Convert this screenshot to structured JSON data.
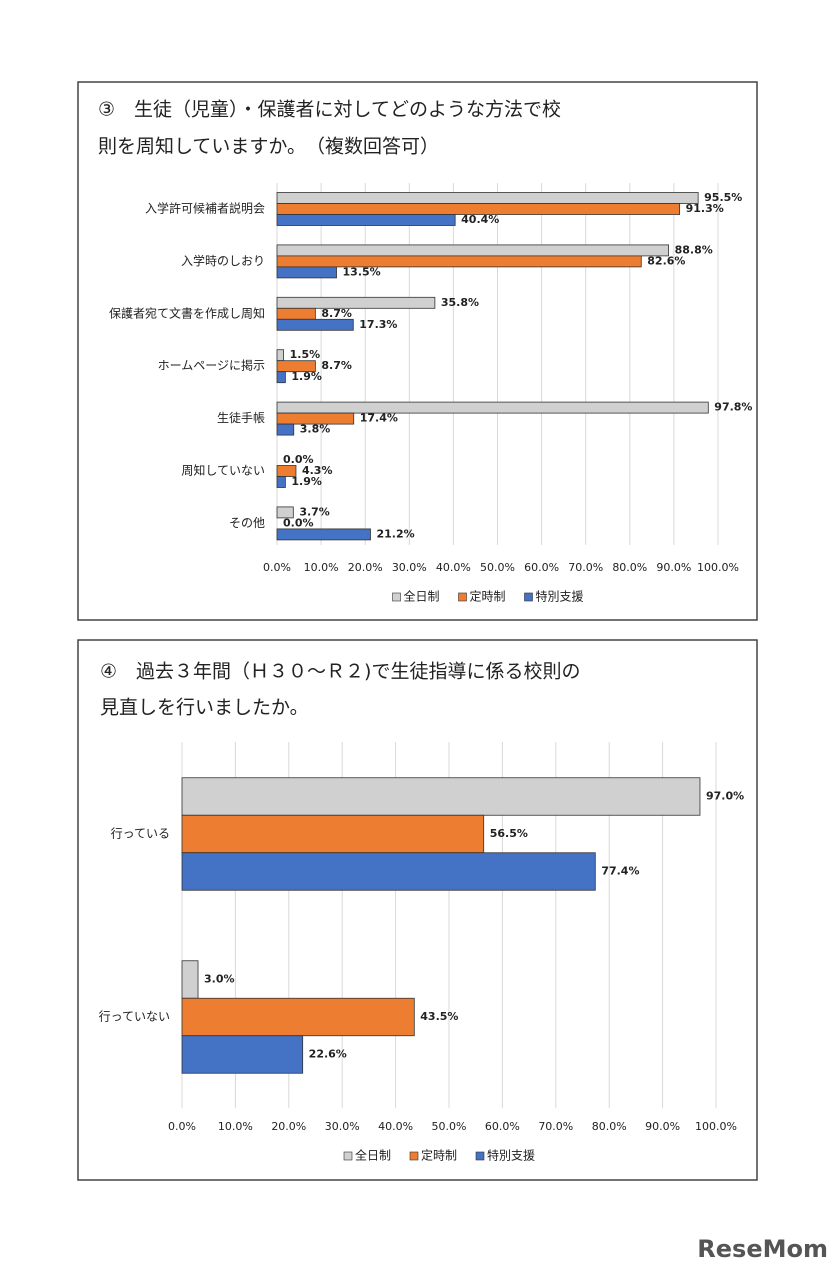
{
  "chart_data": [
    {
      "type": "bar",
      "orientation": "horizontal",
      "title_lines": [
        "③　生徒（児童）・保護者に対してどのような方法で校",
        "則を周知していますか。　（複数回答可）"
      ],
      "categories": [
        "入学許可候補者説明会",
        "入学時のしおり",
        "保護者宛て文書を作成し周知",
        "ホームページに掲示",
        "生徒手帳",
        "周知していない",
        "その他"
      ],
      "series": [
        {
          "name": "全日制",
          "color": "#d0d0d0",
          "values": [
            95.5,
            88.8,
            35.8,
            1.5,
            97.8,
            0.0,
            3.7
          ],
          "value_labels": [
            "95.5%",
            "88.8%",
            "35.8%",
            "1.5%",
            "97.8%",
            "0.0%",
            "3.7%"
          ]
        },
        {
          "name": "定時制",
          "color": "#ed7d31",
          "values": [
            91.3,
            82.6,
            8.7,
            8.7,
            17.4,
            4.3,
            0.0
          ],
          "value_labels": [
            "91.3%",
            "82.6%",
            "8.7%",
            "8.7%",
            "17.4%",
            "4.3%",
            "0.0%"
          ]
        },
        {
          "name": "特別支援",
          "color": "#4472c4",
          "values": [
            40.4,
            13.5,
            17.3,
            1.9,
            3.8,
            1.9,
            21.2
          ],
          "value_labels": [
            "40.4%",
            "13.5%",
            "17.3%",
            "1.9%",
            "3.8%",
            "1.9%",
            "21.2%"
          ]
        }
      ],
      "xlim": [
        0,
        100
      ],
      "xticks": [
        {
          "value": 0,
          "label": "0.0%"
        },
        {
          "value": 10,
          "label": "10.0%"
        },
        {
          "value": 20,
          "label": "20.0%"
        },
        {
          "value": 30,
          "label": "30.0%"
        },
        {
          "value": 40,
          "label": "40.0%"
        },
        {
          "value": 50,
          "label": "50.0%"
        },
        {
          "value": 60,
          "label": "60.0%"
        },
        {
          "value": 70,
          "label": "70.0%"
        },
        {
          "value": 80,
          "label": "80.0%"
        },
        {
          "value": 90,
          "label": "90.0%"
        },
        {
          "value": 100,
          "label": "100.0%"
        }
      ],
      "grid": true,
      "legend": "bottom"
    },
    {
      "type": "bar",
      "orientation": "horizontal",
      "title_lines": [
        "④　過去３年間（Ｈ３０～Ｒ２)で生徒指導に係る校則の",
        "見直しを行いましたか。"
      ],
      "categories": [
        "行っている",
        "行っていない"
      ],
      "series": [
        {
          "name": "全日制",
          "color": "#d0d0d0",
          "values": [
            97.0,
            3.0
          ],
          "value_labels": [
            "97.0%",
            "3.0%"
          ]
        },
        {
          "name": "定時制",
          "color": "#ed7d31",
          "values": [
            56.5,
            43.5
          ],
          "value_labels": [
            "56.5%",
            "43.5%"
          ]
        },
        {
          "name": "特別支援",
          "color": "#4472c4",
          "values": [
            77.4,
            22.6
          ],
          "value_labels": [
            "77.4%",
            "22.6%"
          ]
        }
      ],
      "xlim": [
        0,
        100
      ],
      "xticks": [
        {
          "value": 0,
          "label": "0.0%"
        },
        {
          "value": 10,
          "label": "10.0%"
        },
        {
          "value": 20,
          "label": "20.0%"
        },
        {
          "value": 30,
          "label": "30.0%"
        },
        {
          "value": 40,
          "label": "40.0%"
        },
        {
          "value": 50,
          "label": "50.0%"
        },
        {
          "value": 60,
          "label": "60.0%"
        },
        {
          "value": 70,
          "label": "70.0%"
        },
        {
          "value": 80,
          "label": "80.0%"
        },
        {
          "value": 90,
          "label": "90.0%"
        },
        {
          "value": 100,
          "label": "100.0%"
        }
      ],
      "grid": true,
      "legend": "bottom"
    }
  ],
  "watermark": "ReseMom"
}
